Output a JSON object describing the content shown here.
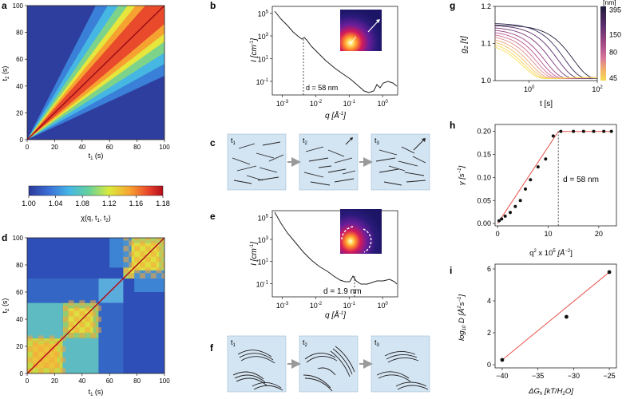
{
  "panel_letters": {
    "a": "a",
    "b": "b",
    "c": "c",
    "d": "d",
    "e": "e",
    "f": "f",
    "g": "g",
    "h": "h",
    "i": "i"
  },
  "panel_a": {
    "xlabel": "t",
    "xlabel_sub": "1",
    "xlabel_unit": " (s)",
    "ylabel": "t",
    "ylabel_sub": "2",
    "ylabel_unit": " (s)",
    "ticks": [
      "0",
      "20",
      "40",
      "60",
      "80",
      "100"
    ]
  },
  "colorbar": {
    "ticks": [
      "1.00",
      "1.04",
      "1.08",
      "1.12",
      "1.16",
      "1.18"
    ],
    "label": "χ(q, t",
    "label_sub1": "1",
    "label_mid": ", t",
    "label_sub2": "2",
    "label_end": ")",
    "colors": [
      "#2b3a9a",
      "#3b6fd6",
      "#45b6e6",
      "#67d29a",
      "#dcea3c",
      "#f7a531",
      "#e8402a",
      "#b20d1a"
    ]
  },
  "panel_d": {
    "xlabel": "t",
    "xlabel_sub": "1",
    "xlabel_unit": " (s)",
    "ylabel": "t",
    "ylabel_sub": "2",
    "ylabel_unit": " (s)",
    "ticks": [
      "0",
      "20",
      "40",
      "60",
      "80",
      "100"
    ]
  },
  "panel_b": {
    "ylabel": "I [cm",
    "ylabel_sup": "-1",
    "ylabel_end": "]",
    "xlabel": "q [Å",
    "xlabel_sup": "-1",
    "xlabel_end": "]",
    "yticks": [
      {
        "b": "10",
        "e": "5"
      },
      {
        "b": "10",
        "e": "3"
      },
      {
        "b": "10",
        "e": "1"
      },
      {
        "b": "10",
        "e": "-1"
      }
    ],
    "xticks": [
      {
        "b": "10",
        "e": "-3"
      },
      {
        "b": "10",
        "e": "-2"
      },
      {
        "b": "10",
        "e": "-1"
      },
      {
        "b": "10",
        "e": "0"
      }
    ],
    "annotation": "d = 58 nm"
  },
  "panel_e": {
    "ylabel": "I [cm",
    "ylabel_sup": "-1",
    "ylabel_end": "]",
    "xlabel": "q [Å",
    "xlabel_sup": "-1",
    "xlabel_end": "]",
    "yticks": [
      {
        "b": "10",
        "e": "5"
      },
      {
        "b": "10",
        "e": "3"
      },
      {
        "b": "10",
        "e": "1"
      },
      {
        "b": "10",
        "e": "-1"
      }
    ],
    "xticks": [
      {
        "b": "10",
        "e": "-3"
      },
      {
        "b": "10",
        "e": "-2"
      },
      {
        "b": "10",
        "e": "-1"
      },
      {
        "b": "10",
        "e": "0"
      }
    ],
    "annotation": "d = 1.9 nm"
  },
  "panel_c": {
    "boxes": [
      {
        "t": "t",
        "s": "1"
      },
      {
        "t": "t",
        "s": "2"
      },
      {
        "t": "t",
        "s": "3"
      }
    ]
  },
  "panel_f": {
    "boxes": [
      {
        "t": "t",
        "s": "1"
      },
      {
        "t": "t",
        "s": "2"
      },
      {
        "t": "t",
        "s": "3"
      }
    ]
  },
  "chart_data": [
    {
      "panel": "g",
      "type": "line",
      "xlabel": "t [s]",
      "ylabel": "g2 [τ]",
      "xscale": "log",
      "xlim": [
        0.1,
        100
      ],
      "ylim": [
        1.0,
        1.2
      ],
      "xticks": [
        {
          "b": "10",
          "e": "0"
        },
        {
          "b": "10",
          "e": "2"
        }
      ],
      "yticks": [
        "1.0",
        "1.1",
        "1.2"
      ],
      "colorbar": {
        "label": "[nm]",
        "ticks": [
          "395",
          "150",
          "80",
          "45"
        ],
        "colors": [
          "#1e1b3a",
          "#5a2d6e",
          "#a14a86",
          "#d9789a",
          "#f0b06a",
          "#f7dc55"
        ]
      },
      "series": [
        {
          "baseline": 1.15,
          "tau": 40,
          "color": "#25233f"
        },
        {
          "baseline": 1.155,
          "tau": 22,
          "color": "#3a2d5a"
        },
        {
          "baseline": 1.15,
          "tau": 14,
          "color": "#5a2d6e"
        },
        {
          "baseline": 1.145,
          "tau": 9,
          "color": "#7a3a7c"
        },
        {
          "baseline": 1.14,
          "tau": 6,
          "color": "#9a4686"
        },
        {
          "baseline": 1.135,
          "tau": 4.5,
          "color": "#b9578e"
        },
        {
          "baseline": 1.13,
          "tau": 3.5,
          "color": "#d06d93"
        },
        {
          "baseline": 1.125,
          "tau": 2.8,
          "color": "#e18a8c"
        },
        {
          "baseline": 1.12,
          "tau": 2.2,
          "color": "#eba67a"
        },
        {
          "baseline": 1.115,
          "tau": 1.8,
          "color": "#f2c062"
        },
        {
          "baseline": 1.11,
          "tau": 1.5,
          "color": "#f6d458"
        },
        {
          "baseline": 1.105,
          "tau": 1.3,
          "color": "#f7e05a"
        }
      ]
    },
    {
      "panel": "h",
      "type": "scatter",
      "xlabel": "q",
      "xlabel_sup": "2",
      "xlabel_mid": " x 10",
      "xlabel_sup2": "5",
      "xlabel_unit": " [Å",
      "xlabel_sup3": "−2",
      "xlabel_end": "]",
      "ylabel": "γ [s",
      "ylabel_sup": "−1",
      "ylabel_end": "]",
      "xlim": [
        -0.5,
        23.5
      ],
      "ylim": [
        -0.005,
        0.215
      ],
      "xticks": [
        "0",
        "10",
        "20"
      ],
      "yticks": [
        "0.00",
        "0.05",
        "0.10",
        "0.15",
        "0.20"
      ],
      "points": [
        [
          0.3,
          0.006
        ],
        [
          0.8,
          0.01
        ],
        [
          1.5,
          0.016
        ],
        [
          2.5,
          0.024
        ],
        [
          3.5,
          0.037
        ],
        [
          4.5,
          0.05
        ],
        [
          5.5,
          0.075
        ],
        [
          6.5,
          0.095
        ],
        [
          8,
          0.123
        ],
        [
          9.5,
          0.14
        ],
        [
          11,
          0.19
        ],
        [
          12.5,
          0.2
        ],
        [
          15,
          0.2
        ],
        [
          17,
          0.2
        ],
        [
          19,
          0.2
        ],
        [
          21,
          0.2
        ],
        [
          22.5,
          0.2
        ]
      ],
      "fit": [
        [
          0,
          0.0
        ],
        [
          12,
          0.2
        ],
        [
          22.5,
          0.2
        ]
      ],
      "vline": 12,
      "annotation": "d = 58 nm"
    },
    {
      "panel": "i",
      "type": "scatter",
      "xlabel": "ΔG",
      "xlabel_sub": "h",
      "xlabel_unit": " [kT/H",
      "xlabel_sub2": "2",
      "xlabel_end": "O]",
      "ylabel": "log",
      "ylabel_sub": "10",
      "ylabel_mid": " D [Å",
      "ylabel_sup": "2",
      "ylabel_mid2": "s",
      "ylabel_sup2": "−1",
      "ylabel_end": "]",
      "xlim": [
        -41,
        -24
      ],
      "ylim": [
        -0.2,
        6.3
      ],
      "xticks": [
        "−40",
        "−35",
        "−30",
        "−25"
      ],
      "yticks": [
        "0",
        "2",
        "4",
        "6"
      ],
      "points": [
        [
          -40,
          0.3
        ],
        [
          -31,
          3.0
        ],
        [
          -25,
          5.8
        ]
      ],
      "fit": [
        [
          -40,
          0.3
        ],
        [
          -25,
          5.8
        ]
      ]
    }
  ]
}
